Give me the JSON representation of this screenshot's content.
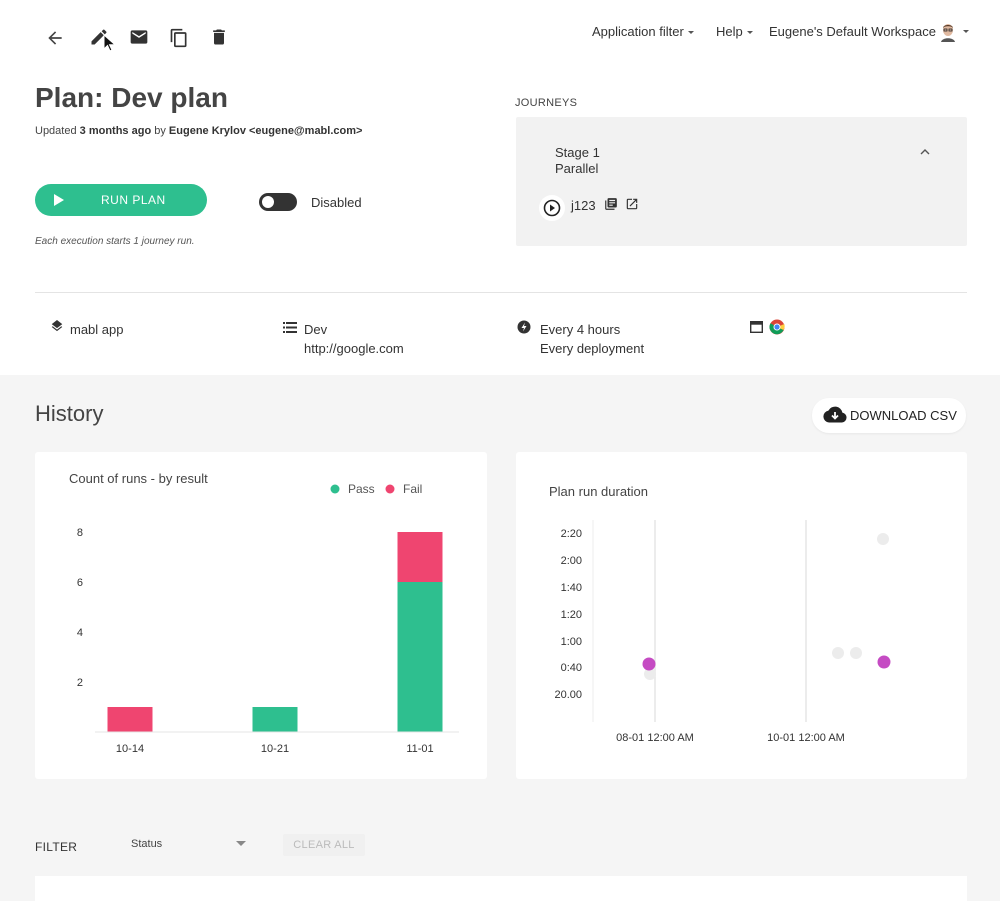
{
  "toolbar": {
    "back_icon": "arrow-left-icon",
    "edit_icon": "pencil-icon",
    "email_icon": "envelope-icon",
    "copy_icon": "copy-icon",
    "delete_icon": "trash-icon"
  },
  "topnav": {
    "application_filter": "Application filter",
    "help": "Help",
    "workspace": "Eugene's Default Workspace"
  },
  "plan": {
    "title": "Plan: Dev plan",
    "updated_prefix": "Updated",
    "updated_time": "3 months ago",
    "updated_by": "by",
    "updated_user": "Eugene Krylov <eugene@mabl.com>",
    "run_label": "RUN PLAN",
    "disabled_label": "Disabled",
    "execution_note": "Each execution starts 1 journey run."
  },
  "journeys": {
    "heading": "JOURNEYS",
    "stage_name": "Stage 1",
    "stage_mode": "Parallel",
    "journey_name": "j123"
  },
  "info": {
    "app": "mabl app",
    "env_name": "Dev",
    "env_url": "http://google.com",
    "schedule": "Every 4 hours",
    "trigger": "Every deployment"
  },
  "history": {
    "title": "History",
    "download_label": "DOWNLOAD CSV"
  },
  "filter": {
    "label": "FILTER",
    "status_label": "Status",
    "clear_label": "CLEAR ALL"
  },
  "colors": {
    "pass": "#2ebf8f",
    "fail": "#ef4570",
    "run_point": "#c54bc3"
  },
  "chart_data": [
    {
      "type": "bar",
      "title": "Count of runs - by result",
      "categories": [
        "10-14",
        "10-21",
        "11-01"
      ],
      "series": [
        {
          "name": "Pass",
          "values": [
            0,
            1,
            6
          ]
        },
        {
          "name": "Fail",
          "values": [
            1,
            0,
            2
          ]
        }
      ],
      "stacked": true,
      "ylim": [
        0,
        8.8
      ],
      "yticks": [
        "2",
        "4",
        "6",
        "8"
      ],
      "legend": "top-right"
    },
    {
      "type": "scatter",
      "title": "Plan run duration",
      "xticks": [
        "08-01 12:00 AM",
        "10-01 12:00 AM"
      ],
      "yticks": [
        "20.00",
        "0:40",
        "1:00",
        "1:20",
        "1:40",
        "2:00",
        "2:20"
      ]
    }
  ]
}
